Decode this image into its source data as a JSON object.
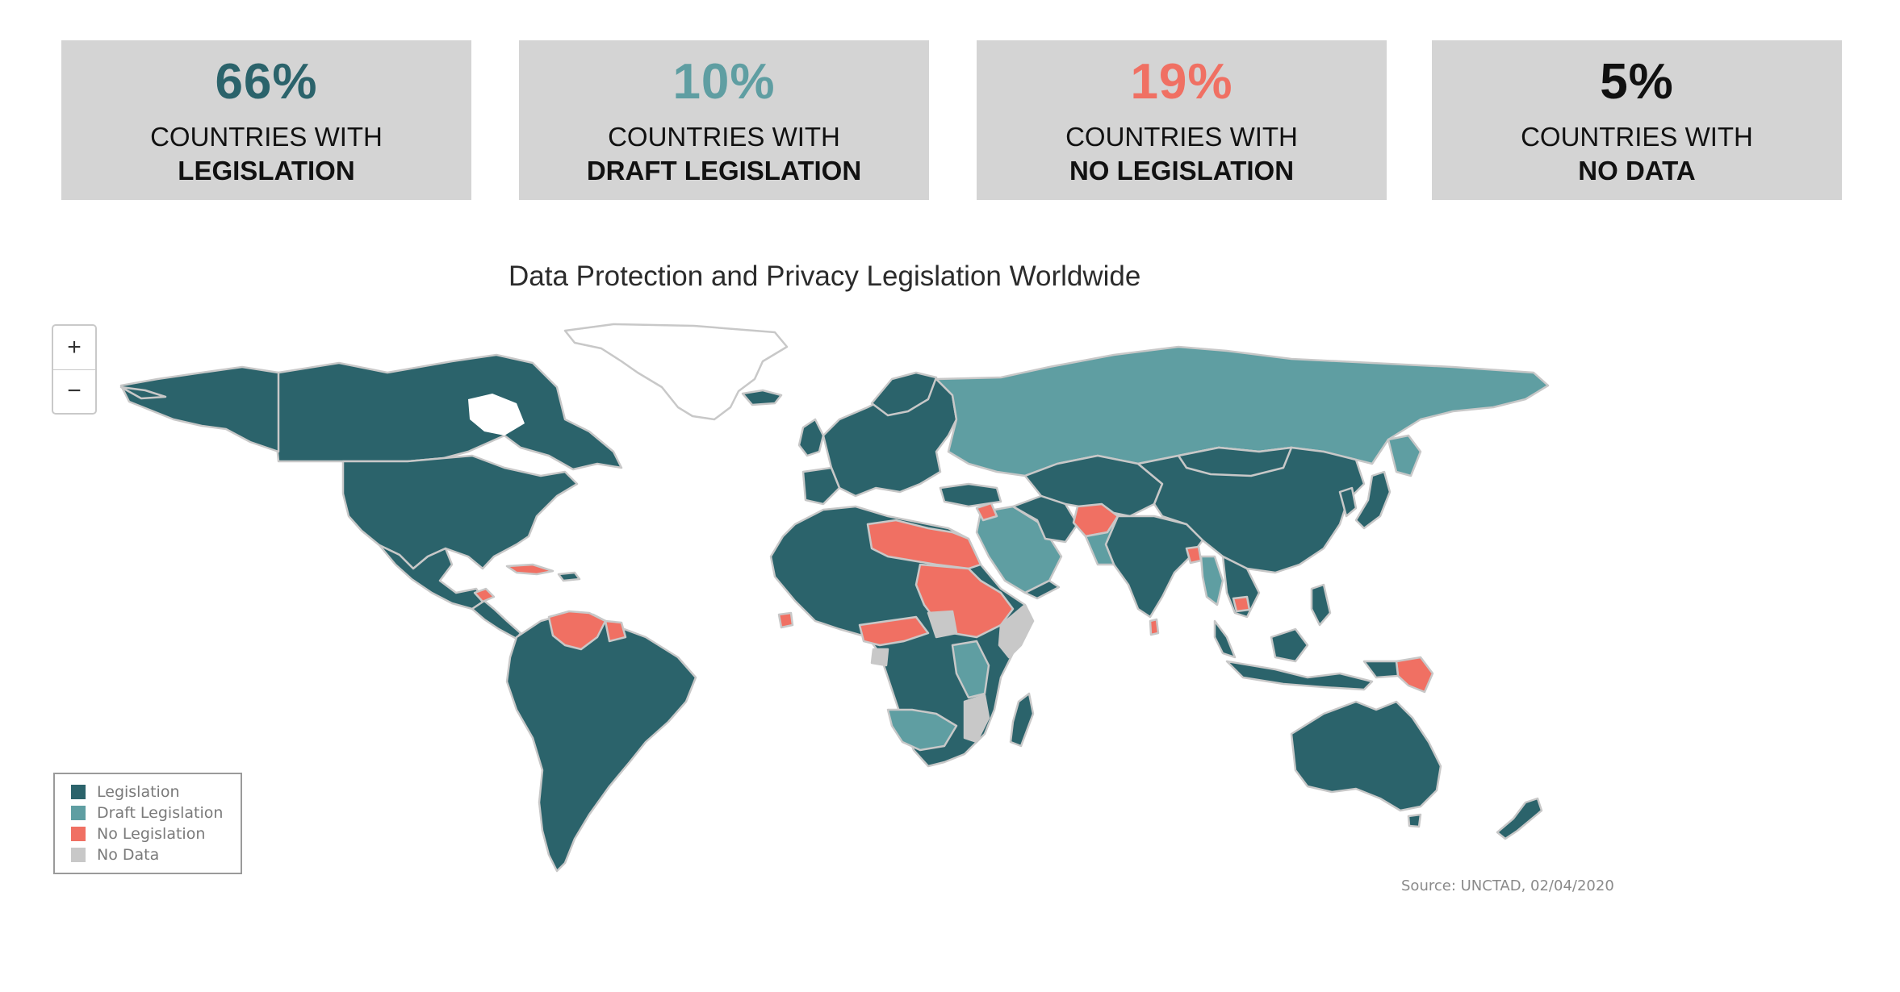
{
  "stats": [
    {
      "value": "66%",
      "line1": "COUNTRIES WITH",
      "line2": "LEGISLATION",
      "color": "#2b636b"
    },
    {
      "value": "10%",
      "line1": "COUNTRIES WITH",
      "line2": "DRAFT LEGISLATION",
      "color": "#5f9ea2"
    },
    {
      "value": "19%",
      "line1": "COUNTRIES WITH",
      "line2": "NO LEGISLATION",
      "color": "#f07063"
    },
    {
      "value": "5%",
      "line1": "COUNTRIES WITH",
      "line2": "NO DATA",
      "color": "#111111"
    }
  ],
  "map": {
    "title": "Data Protection and Privacy Legislation Worldwide",
    "zoom_in_label": "+",
    "zoom_out_label": "−",
    "source": "Source: UNCTAD, 02/04/2020"
  },
  "legend": {
    "items": [
      {
        "label": "Legislation",
        "color": "#2b636b"
      },
      {
        "label": "Draft Legislation",
        "color": "#5f9ea2"
      },
      {
        "label": "No Legislation",
        "color": "#f07063"
      },
      {
        "label": "No Data",
        "color": "#c8c8c8"
      }
    ]
  }
}
